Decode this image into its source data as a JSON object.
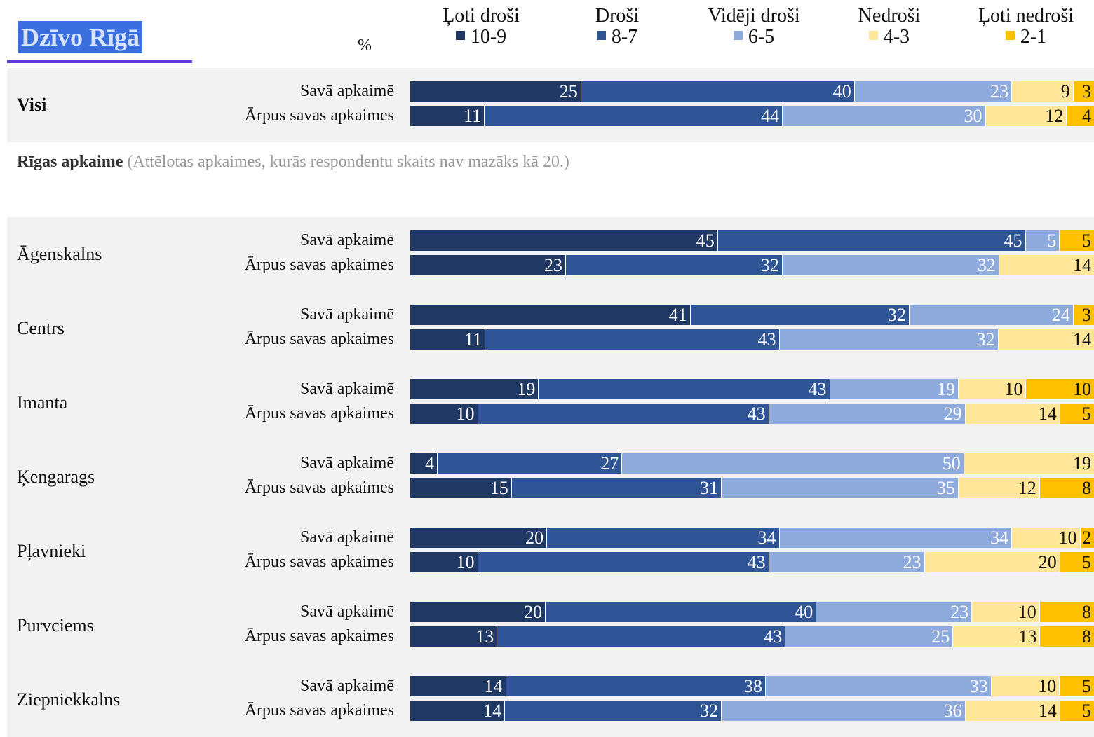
{
  "header": {
    "logo": "Dzīvo Rīgā",
    "unit": "%"
  },
  "legend": [
    {
      "title": "Ļoti droši",
      "range": "10-9",
      "color": "#1f3864"
    },
    {
      "title": "Droši",
      "range": "8-7",
      "color": "#2f5597"
    },
    {
      "title": "Vidēji droši",
      "range": "6-5",
      "color": "#8faadc"
    },
    {
      "title": "Nedroši",
      "range": "4-3",
      "color": "#ffe699"
    },
    {
      "title": "Ļoti nedroši",
      "range": "2-1",
      "color": "#ffc000"
    }
  ],
  "section": {
    "title": "Rīgas apkaime",
    "note": "(Attēlotas apkaimes, kurās respondentu skaits nav mazāks kā 20.)"
  },
  "chart_data": {
    "type": "bar",
    "stacked": true,
    "orientation": "horizontal",
    "unit": "%",
    "categories_order": [
      "Ļoti droši",
      "Droši",
      "Vidēji droši",
      "Nedroši",
      "Ļoti nedroši"
    ],
    "groups": [
      {
        "name": "Visi",
        "bold": true,
        "rows": [
          {
            "label": "Savā apkaimē",
            "values": [
              25,
              40,
              23,
              9,
              3
            ]
          },
          {
            "label": "Ārpus savas apkaimes",
            "values": [
              11,
              44,
              30,
              12,
              4
            ]
          }
        ]
      },
      {
        "name": "Āgenskalns",
        "rows": [
          {
            "label": "Savā apkaimē",
            "values": [
              45,
              45,
              5,
              0,
              5
            ]
          },
          {
            "label": "Ārpus savas apkaimes",
            "values": [
              23,
              32,
              32,
              14,
              0
            ]
          }
        ]
      },
      {
        "name": "Centrs",
        "rows": [
          {
            "label": "Savā apkaimē",
            "values": [
              41,
              32,
              24,
              0,
              3
            ]
          },
          {
            "label": "Ārpus savas apkaimes",
            "values": [
              11,
              43,
              32,
              14,
              0
            ]
          }
        ]
      },
      {
        "name": "Imanta",
        "rows": [
          {
            "label": "Savā apkaimē",
            "values": [
              19,
              43,
              19,
              10,
              10
            ]
          },
          {
            "label": "Ārpus savas apkaimes",
            "values": [
              10,
              43,
              29,
              14,
              5
            ]
          }
        ]
      },
      {
        "name": "Ķengarags",
        "rows": [
          {
            "label": "Savā apkaimē",
            "values": [
              4,
              27,
              50,
              19,
              0
            ]
          },
          {
            "label": "Ārpus savas apkaimes",
            "values": [
              15,
              31,
              35,
              12,
              8
            ]
          }
        ]
      },
      {
        "name": "Pļavnieki",
        "rows": [
          {
            "label": "Savā apkaimē",
            "values": [
              20,
              34,
              34,
              10,
              2
            ]
          },
          {
            "label": "Ārpus savas apkaimes",
            "values": [
              10,
              43,
              23,
              20,
              5
            ]
          }
        ]
      },
      {
        "name": "Purvciems",
        "rows": [
          {
            "label": "Savā apkaimē",
            "values": [
              20,
              40,
              23,
              10,
              8
            ]
          },
          {
            "label": "Ārpus savas apkaimes",
            "values": [
              13,
              43,
              25,
              13,
              8
            ]
          }
        ]
      },
      {
        "name": "Ziepniekkalns",
        "rows": [
          {
            "label": "Savā apkaimē",
            "values": [
              14,
              38,
              33,
              10,
              5
            ]
          },
          {
            "label": "Ārpus savas apkaimes",
            "values": [
              14,
              32,
              36,
              14,
              5
            ]
          }
        ]
      }
    ]
  }
}
